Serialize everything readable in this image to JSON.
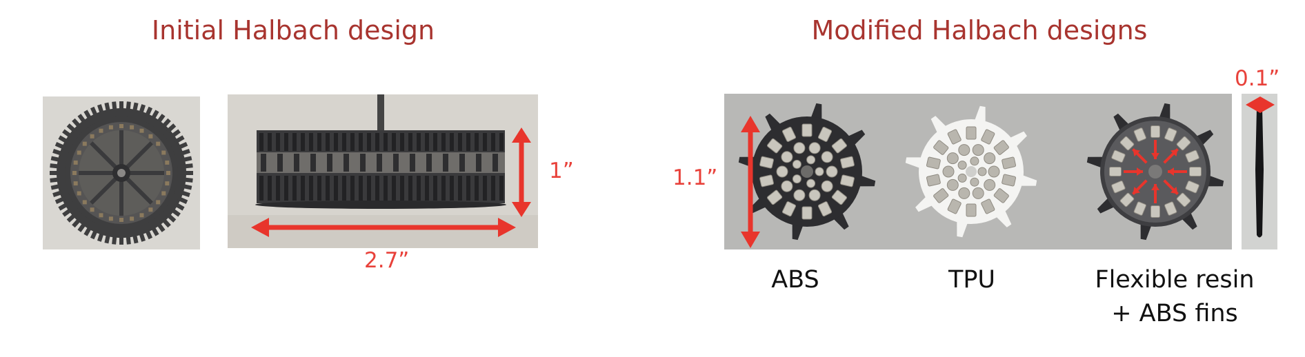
{
  "titles": {
    "initial": "Initial Halbach design",
    "modified": "Modified Halbach designs"
  },
  "dimensions": {
    "height_initial": "1”",
    "diameter_initial": "2.7”",
    "diameter_modified": "1.1”",
    "thickness_modified": "0.1”"
  },
  "captions": {
    "abs": "ABS",
    "tpu": "TPU",
    "flex_line1": "Flexible resin",
    "flex_line2": "+ ABS fins"
  },
  "colors": {
    "title": "#a8342f",
    "dimension": "#e8413a",
    "arrow": "#e8352c",
    "photo_bg": "#b8b8b6",
    "abs_part": "#2d2d30",
    "tpu_part": "#f4f4f2",
    "magnet": "#c9c6bd"
  }
}
